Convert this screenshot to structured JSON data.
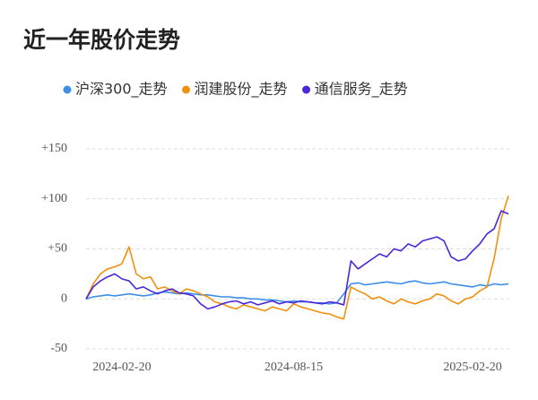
{
  "chart_data": {
    "type": "line",
    "title": "近一年股价走势",
    "categories": [
      null,
      null,
      null,
      null,
      null,
      "2024-02-20",
      null,
      null,
      null,
      null,
      null,
      null,
      null,
      null,
      null,
      null,
      null,
      null,
      null,
      null,
      null,
      null,
      null,
      null,
      null,
      null,
      null,
      null,
      null,
      "2024-08-15",
      null,
      null,
      null,
      null,
      null,
      null,
      null,
      null,
      null,
      null,
      null,
      null,
      null,
      null,
      null,
      null,
      null,
      null,
      null,
      null,
      null,
      null,
      null,
      null,
      "2025-02-20",
      null,
      null,
      null,
      null,
      null
    ],
    "ylim": [
      -50,
      150
    ],
    "yticks": [
      {
        "value": 150,
        "label": "+150"
      },
      {
        "value": 100,
        "label": "+100"
      },
      {
        "value": 50,
        "label": "+50"
      },
      0,
      -50
    ],
    "grid": true,
    "series": [
      {
        "name": "沪深300_走势",
        "color": "#3d8fe8",
        "values": [
          0,
          2,
          3,
          4,
          3,
          4,
          5,
          4,
          3,
          4,
          6,
          7,
          6,
          5,
          6,
          5,
          4,
          4,
          3,
          2,
          2,
          1,
          1,
          0,
          0,
          -1,
          -1,
          -2,
          -3,
          -2,
          -3,
          -3,
          -4,
          -4,
          -5,
          -4,
          5,
          15,
          16,
          14,
          15,
          16,
          17,
          16,
          15,
          17,
          18,
          16,
          15,
          16,
          17,
          15,
          14,
          13,
          12,
          14,
          13,
          15,
          14,
          15
        ]
      },
      {
        "name": "润建股份_走势",
        "color": "#f0900f",
        "values": [
          0,
          15,
          25,
          30,
          32,
          35,
          52,
          25,
          20,
          22,
          10,
          12,
          8,
          5,
          10,
          8,
          5,
          2,
          -3,
          -5,
          -8,
          -10,
          -6,
          -8,
          -10,
          -12,
          -8,
          -10,
          -12,
          -5,
          -8,
          -10,
          -12,
          -14,
          -15,
          -18,
          -20,
          12,
          8,
          5,
          0,
          2,
          -2,
          -5,
          0,
          -3,
          -5,
          -2,
          0,
          5,
          3,
          -2,
          -5,
          0,
          2,
          8,
          12,
          40,
          80,
          103
        ]
      },
      {
        "name": "通信服务_走势",
        "color": "#4a27d8",
        "values": [
          0,
          12,
          18,
          22,
          25,
          20,
          18,
          10,
          12,
          8,
          5,
          8,
          10,
          6,
          5,
          3,
          -5,
          -10,
          -8,
          -5,
          -3,
          -2,
          -5,
          -3,
          -6,
          -4,
          -2,
          -5,
          -3,
          -4,
          -2,
          -3,
          -4,
          -5,
          -3,
          -4,
          -6,
          38,
          30,
          35,
          40,
          45,
          42,
          50,
          48,
          55,
          52,
          58,
          60,
          62,
          58,
          42,
          38,
          40,
          48,
          55,
          65,
          70,
          88,
          85
        ]
      }
    ]
  }
}
